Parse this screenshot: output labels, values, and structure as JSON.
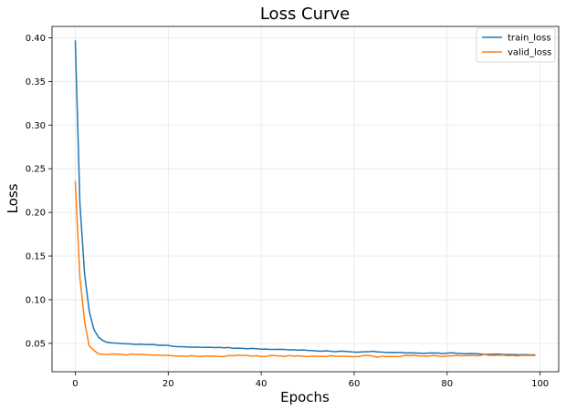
{
  "chart_data": {
    "type": "line",
    "title": "Loss Curve",
    "xlabel": "Epochs",
    "ylabel": "Loss",
    "xlim": [
      -5,
      104
    ],
    "ylim": [
      0.0175,
      0.413
    ],
    "x_ticks": [
      0,
      20,
      40,
      60,
      80,
      100
    ],
    "y_ticks": [
      0.05,
      0.1,
      0.15,
      0.2,
      0.25,
      0.3,
      0.35,
      0.4
    ],
    "x_tick_labels": [
      "0",
      "20",
      "40",
      "60",
      "80",
      "100"
    ],
    "y_tick_labels": [
      "0.05",
      "0.10",
      "0.15",
      "0.20",
      "0.25",
      "0.30",
      "0.35",
      "0.40"
    ],
    "grid": true,
    "legend_position": "top-right",
    "x": [
      0,
      1,
      2,
      3,
      4,
      5,
      6,
      7,
      8,
      9,
      10,
      11,
      12,
      13,
      14,
      15,
      16,
      17,
      18,
      19,
      20,
      21,
      22,
      23,
      24,
      25,
      26,
      27,
      28,
      29,
      30,
      31,
      32,
      33,
      34,
      35,
      36,
      37,
      38,
      39,
      40,
      41,
      42,
      43,
      44,
      45,
      46,
      47,
      48,
      49,
      50,
      51,
      52,
      53,
      54,
      55,
      56,
      57,
      58,
      59,
      60,
      61,
      62,
      63,
      64,
      65,
      66,
      67,
      68,
      69,
      70,
      71,
      72,
      73,
      74,
      75,
      76,
      77,
      78,
      79,
      80,
      81,
      82,
      83,
      84,
      85,
      86,
      87,
      88,
      89,
      90,
      91,
      92,
      93,
      94,
      95,
      96,
      97,
      98,
      99
    ],
    "series": [
      {
        "name": "train_loss",
        "color": "#1f77b4",
        "values": [
          0.397,
          0.21,
          0.13,
          0.087,
          0.066,
          0.057,
          0.053,
          0.051,
          0.0505,
          0.0502,
          0.0498,
          0.0495,
          0.0493,
          0.0488,
          0.049,
          0.0487,
          0.0485,
          0.0486,
          0.0478,
          0.0479,
          0.0476,
          0.0466,
          0.0462,
          0.0462,
          0.0458,
          0.0456,
          0.0458,
          0.0455,
          0.0454,
          0.0456,
          0.0452,
          0.0454,
          0.0449,
          0.0453,
          0.0443,
          0.0445,
          0.0442,
          0.0439,
          0.0443,
          0.0438,
          0.0433,
          0.0434,
          0.0431,
          0.0431,
          0.0432,
          0.043,
          0.0425,
          0.0427,
          0.0422,
          0.0425,
          0.0419,
          0.0417,
          0.0413,
          0.041,
          0.0415,
          0.0409,
          0.0405,
          0.0411,
          0.0409,
          0.0405,
          0.04,
          0.0399,
          0.0403,
          0.0404,
          0.041,
          0.0402,
          0.04,
          0.0395,
          0.0397,
          0.0396,
          0.0395,
          0.039,
          0.0392,
          0.039,
          0.0388,
          0.0385,
          0.0389,
          0.039,
          0.0389,
          0.0382,
          0.0389,
          0.0391,
          0.0386,
          0.0384,
          0.0381,
          0.0384,
          0.0382,
          0.0379,
          0.0375,
          0.0375,
          0.0376,
          0.0377,
          0.0373,
          0.0372,
          0.0372,
          0.0369,
          0.0369,
          0.037,
          0.0368,
          0.0368
        ]
      },
      {
        "name": "valid_loss",
        "color": "#ff7f0e",
        "values": [
          0.236,
          0.125,
          0.075,
          0.047,
          0.042,
          0.038,
          0.0375,
          0.0372,
          0.0378,
          0.0376,
          0.0373,
          0.0366,
          0.0378,
          0.0372,
          0.0376,
          0.0371,
          0.0368,
          0.0366,
          0.0365,
          0.0363,
          0.0362,
          0.0358,
          0.0354,
          0.0355,
          0.035,
          0.036,
          0.0352,
          0.0349,
          0.0355,
          0.0353,
          0.0354,
          0.035,
          0.0348,
          0.0361,
          0.0357,
          0.0366,
          0.0362,
          0.0362,
          0.0353,
          0.0359,
          0.0349,
          0.0348,
          0.0363,
          0.0359,
          0.0356,
          0.035,
          0.0361,
          0.0352,
          0.0358,
          0.0352,
          0.0348,
          0.0355,
          0.035,
          0.0353,
          0.0349,
          0.036,
          0.0351,
          0.0352,
          0.0352,
          0.035,
          0.0347,
          0.035,
          0.0362,
          0.0361,
          0.0354,
          0.0341,
          0.0353,
          0.0347,
          0.0351,
          0.0348,
          0.035,
          0.0363,
          0.0359,
          0.0363,
          0.0355,
          0.0354,
          0.0353,
          0.0361,
          0.0355,
          0.0348,
          0.0356,
          0.0356,
          0.0362,
          0.0357,
          0.0359,
          0.0361,
          0.0359,
          0.0359,
          0.0372,
          0.0363,
          0.0363,
          0.0364,
          0.0366,
          0.0359,
          0.0361,
          0.0355,
          0.0363,
          0.0361,
          0.0362,
          0.0361
        ]
      }
    ]
  }
}
